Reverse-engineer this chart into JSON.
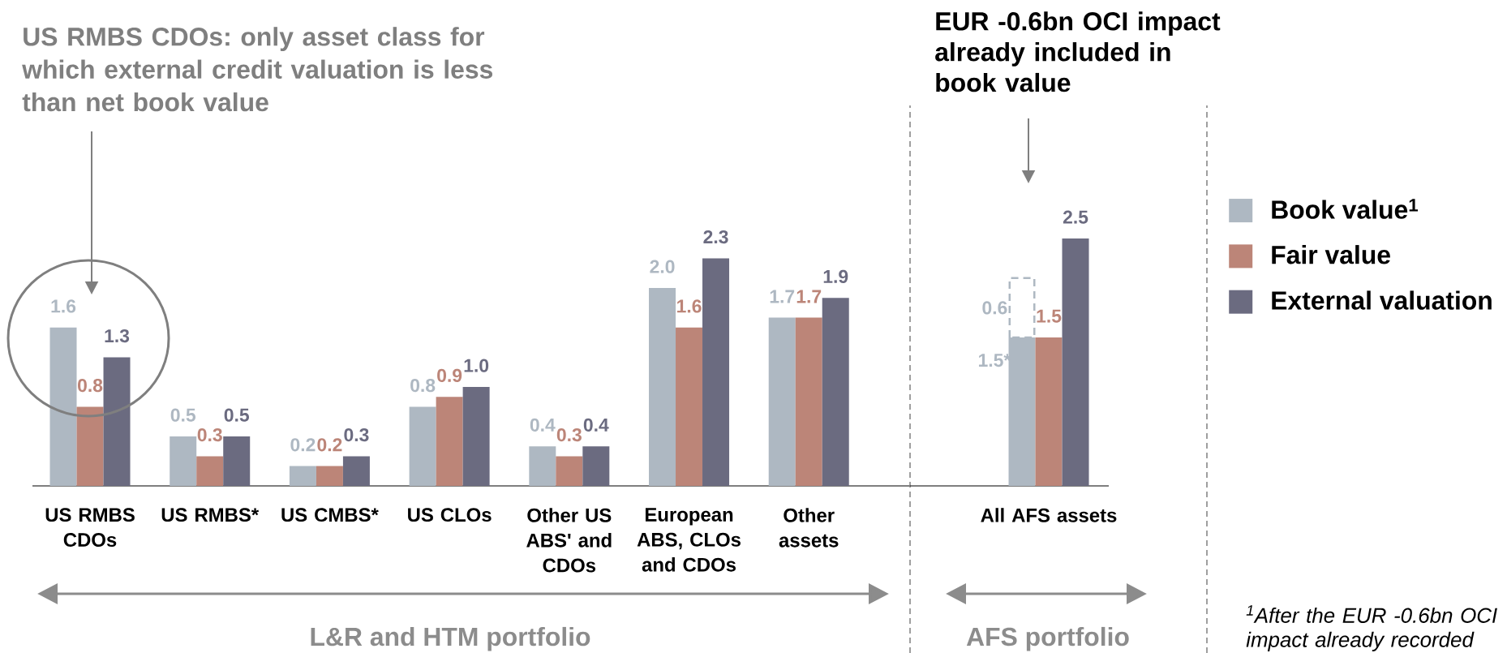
{
  "chart_data": [
    {
      "type": "bar",
      "title": "L&R and HTM portfolio",
      "categories": [
        "US RMBS CDOs",
        "US RMBS*",
        "US CMBS*",
        "US CLOs",
        "Other US ABS' and CDOs",
        "European ABS, CLOs and CDOs",
        "Other assets"
      ],
      "series": [
        {
          "color": "#aeb8c2",
          "values": [
            1.6,
            0.5,
            0.2,
            0.8,
            0.4,
            2.0,
            1.7
          ],
          "value_labels": [
            "1.6",
            "0.5",
            "0.2",
            "0.8",
            "0.4",
            "2.0",
            "1.7"
          ]
        },
        {
          "color": "#bc8578",
          "values": [
            0.8,
            0.3,
            0.2,
            0.9,
            0.3,
            1.6,
            1.7
          ],
          "value_labels": [
            "0.8",
            "0.3",
            "0.2",
            "0.9",
            "0.3",
            "1.6",
            "1.7"
          ]
        },
        {
          "color": "#6b6b80",
          "values": [
            1.3,
            0.5,
            0.3,
            1.0,
            0.4,
            2.3,
            1.9
          ],
          "value_labels": [
            "1.3",
            "0.5",
            "0.3",
            "1.0",
            "0.4",
            "2.3",
            "1.9"
          ]
        }
      ],
      "annotations": [
        "US RMBS CDOs: only asset class for which external credit valuation is less than net book value"
      ]
    },
    {
      "type": "bar",
      "title": "AFS portfolio",
      "categories": [
        null,
        "All AFS assets",
        null
      ],
      "stacked": true,
      "series": [
        {
          "name": "Book value$^{1}$",
          "color": "#aeb8c2",
          "values": [
            1.5,
            null,
            null
          ],
          "value_labels": [
            "1.5*",
            null,
            null
          ]
        },
        {
          "color": "#aeb8c2",
          "values": [
            0.6,
            null,
            null
          ],
          "line_style": "dashed",
          "value_labels": [
            "0.6",
            null,
            null
          ]
        },
        {
          "name": "Fair value",
          "color": "#bc8578",
          "values": [
            null,
            1.5,
            null
          ],
          "value_labels": [
            null,
            "1.5",
            null
          ]
        },
        {
          "name": "External valuation",
          "color": "#6b6b80",
          "values": [
            null,
            null,
            2.5
          ],
          "value_labels": [
            null,
            null,
            "2.5"
          ]
        }
      ],
      "legend": "right",
      "annotations": [
        "EUR -0.6bn OCI impact already included in book value",
        "$^{1}$After the EUR -0.6bn OCI impact already recorded"
      ]
    }
  ]
}
